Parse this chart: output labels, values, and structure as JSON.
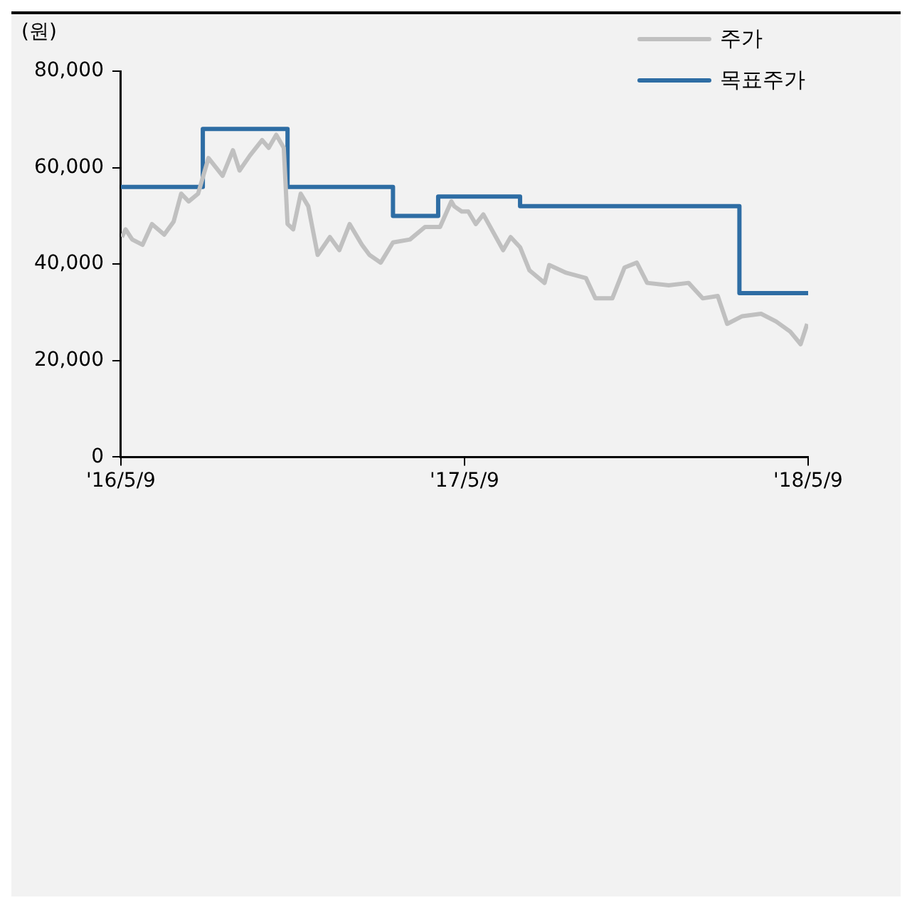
{
  "chart_data": {
    "type": "line",
    "ylabel": "(원)",
    "legend": "top right",
    "grid": false,
    "marker": "none",
    "line_style": "solid",
    "xlim": [
      "2016-05-09",
      "2018-05-09"
    ],
    "xticks": [
      {
        "value": "2016-05-09",
        "label": "'16/5/9"
      },
      {
        "value": "2017-05-09",
        "label": "'17/5/9"
      },
      {
        "value": "2018-05-09",
        "label": "'18/5/9"
      }
    ],
    "ylim": [
      0,
      80000
    ],
    "yticks": [
      {
        "value": 0,
        "label": "0"
      },
      {
        "value": 20000,
        "label": "20,000"
      },
      {
        "value": 40000,
        "label": "40,000"
      },
      {
        "value": 60000,
        "label": "60,000"
      },
      {
        "value": 80000,
        "label": "80,000"
      }
    ],
    "series": [
      {
        "name": "주가",
        "color": "#c0c0c0",
        "x": [
          "2016-05-10",
          "2016-05-14",
          "2016-05-21",
          "2016-06-01",
          "2016-06-11",
          "2016-06-24",
          "2016-07-04",
          "2016-07-12",
          "2016-07-20",
          "2016-07-30",
          "2016-08-10",
          "2016-08-25",
          "2016-09-05",
          "2016-09-12",
          "2016-09-23",
          "2016-10-06",
          "2016-10-13",
          "2016-10-21",
          "2016-10-29",
          "2016-11-02",
          "2016-11-08",
          "2016-11-16",
          "2016-11-24",
          "2016-12-04",
          "2016-12-17",
          "2016-12-27",
          "2017-01-07",
          "2017-01-20",
          "2017-01-28",
          "2017-02-09",
          "2017-02-22",
          "2017-03-12",
          "2017-03-28",
          "2017-04-13",
          "2017-04-25",
          "2017-04-28",
          "2017-05-06",
          "2017-05-13",
          "2017-05-21",
          "2017-05-29",
          "2017-06-19",
          "2017-06-27",
          "2017-07-07",
          "2017-07-17",
          "2017-08-02",
          "2017-08-07",
          "2017-08-25",
          "2017-09-15",
          "2017-09-25",
          "2017-10-13",
          "2017-10-26",
          "2017-11-08",
          "2017-11-19",
          "2017-12-12",
          "2018-01-02",
          "2018-01-17",
          "2018-02-02",
          "2018-02-12",
          "2018-02-28",
          "2018-03-20",
          "2018-04-05",
          "2018-04-20",
          "2018-05-01",
          "2018-05-08"
        ],
        "values": [
          45600,
          47200,
          45100,
          44000,
          48300,
          46100,
          48800,
          54600,
          53000,
          54600,
          62000,
          58300,
          63600,
          59400,
          62500,
          65700,
          64100,
          66800,
          64100,
          48300,
          47200,
          54600,
          52000,
          41900,
          45600,
          42900,
          48300,
          44000,
          41900,
          40300,
          44500,
          45100,
          47700,
          47700,
          53000,
          52000,
          50900,
          50900,
          48300,
          50300,
          42900,
          45600,
          43500,
          38700,
          36100,
          39800,
          38200,
          37100,
          32900,
          32900,
          39300,
          40300,
          36100,
          35600,
          36100,
          32900,
          33400,
          27600,
          29200,
          29700,
          28100,
          26000,
          23400,
          27600
        ]
      },
      {
        "name": "목표주가",
        "type": "step",
        "color": "#2e6da4",
        "x": [
          "2016-05-09",
          "2016-08-04",
          "2016-11-02",
          "2017-02-22",
          "2017-04-11",
          "2017-07-07",
          "2018-02-25",
          "2018-05-09"
        ],
        "values": [
          56000,
          68000,
          56000,
          50000,
          54000,
          52000,
          34000,
          34000
        ]
      }
    ]
  }
}
